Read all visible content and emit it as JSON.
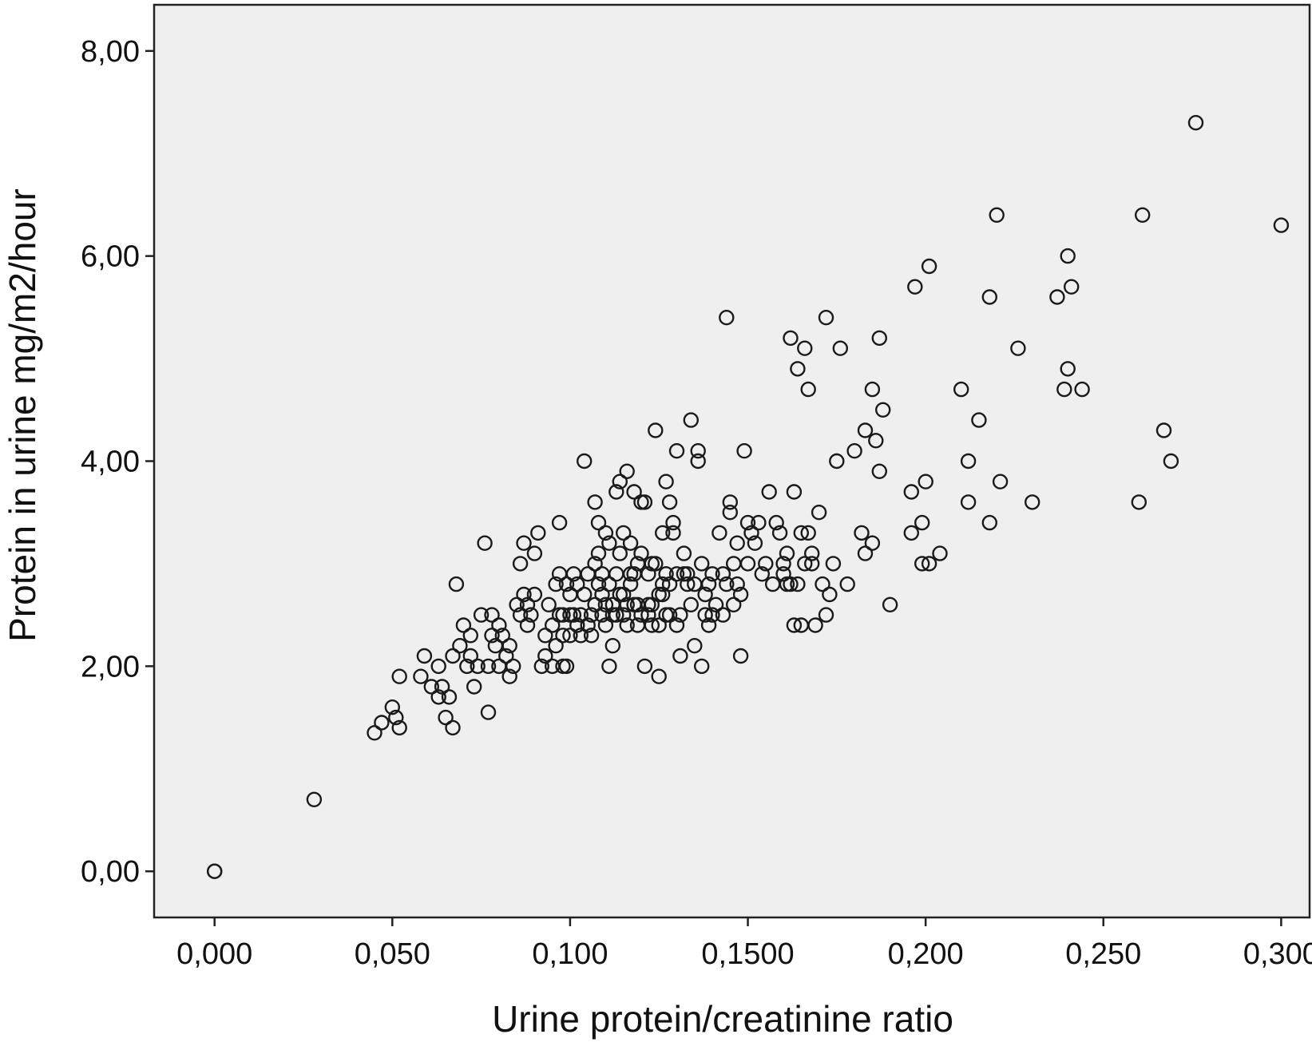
{
  "chart_data": {
    "type": "scatter",
    "title": "",
    "xlabel": "Urine protein/creatinine ratio",
    "ylabel": "Protein in urine mg/m2/hour",
    "xlim": [
      -0.017,
      0.308
    ],
    "ylim": [
      -0.45,
      8.45
    ],
    "grid": false,
    "legend": "none",
    "x_ticks": [
      {
        "value": 0.0,
        "label": "0,000"
      },
      {
        "value": 0.05,
        "label": "0,050"
      },
      {
        "value": 0.1,
        "label": "0,100"
      },
      {
        "value": 0.15,
        "label": "0,1500"
      },
      {
        "value": 0.2,
        "label": "0,200"
      },
      {
        "value": 0.25,
        "label": "0,250"
      },
      {
        "value": 0.3,
        "label": "0,300"
      }
    ],
    "y_ticks": [
      {
        "value": 0,
        "label": "0,00"
      },
      {
        "value": 2,
        "label": "2,00"
      },
      {
        "value": 4,
        "label": "4,00"
      },
      {
        "value": 6,
        "label": "6,00"
      },
      {
        "value": 8,
        "label": "8,00"
      }
    ],
    "colors": {
      "background": "#efefef",
      "marker": "#1a1a1a",
      "axis": "#222222"
    },
    "series": [
      {
        "x": [
          0,
          0,
          0.028,
          0.045,
          0.047,
          0.05,
          0.051,
          0.052,
          0.052,
          0.058,
          0.059,
          0.061,
          0.063,
          0.063,
          0.064,
          0.065,
          0.066,
          0.067,
          0.067,
          0.068,
          0.069,
          0.07,
          0.071,
          0.072,
          0.072,
          0.073,
          0.074,
          0.075,
          0.076,
          0.077,
          0.077,
          0.078,
          0.078,
          0.079,
          0.08,
          0.08,
          0.081,
          0.082,
          0.083,
          0.083,
          0.084,
          0.085,
          0.086,
          0.086,
          0.087,
          0.087,
          0.088,
          0.088,
          0.089,
          0.09,
          0.09,
          0.091,
          0.092,
          0.093,
          0.093,
          0.094,
          0.095,
          0.095,
          0.096,
          0.096,
          0.097,
          0.097,
          0.097,
          0.098,
          0.098,
          0.098,
          0.099,
          0.099,
          0.1,
          0.1,
          0.1,
          0.101,
          0.101,
          0.102,
          0.102,
          0.103,
          0.103,
          0.104,
          0.104,
          0.105,
          0.105,
          0.106,
          0.106,
          0.107,
          0.107,
          0.107,
          0.108,
          0.108,
          0.108,
          0.109,
          0.109,
          0.109,
          0.11,
          0.11,
          0.11,
          0.111,
          0.111,
          0.111,
          0.112,
          0.112,
          0.112,
          0.113,
          0.113,
          0.113,
          0.114,
          0.114,
          0.114,
          0.115,
          0.115,
          0.115,
          0.116,
          0.116,
          0.116,
          0.117,
          0.117,
          0.117,
          0.118,
          0.118,
          0.118,
          0.119,
          0.119,
          0.119,
          0.12,
          0.12,
          0.12,
          0.121,
          0.121,
          0.122,
          0.122,
          0.122,
          0.123,
          0.123,
          0.123,
          0.124,
          0.124,
          0.125,
          0.125,
          0.125,
          0.126,
          0.126,
          0.126,
          0.127,
          0.127,
          0.127,
          0.128,
          0.128,
          0.128,
          0.129,
          0.129,
          0.13,
          0.13,
          0.13,
          0.131,
          0.131,
          0.132,
          0.132,
          0.133,
          0.133,
          0.134,
          0.134,
          0.135,
          0.135,
          0.136,
          0.136,
          0.137,
          0.137,
          0.138,
          0.138,
          0.139,
          0.139,
          0.14,
          0.14,
          0.141,
          0.142,
          0.143,
          0.143,
          0.144,
          0.144,
          0.145,
          0.145,
          0.146,
          0.146,
          0.147,
          0.147,
          0.148,
          0.148,
          0.149,
          0.15,
          0.15,
          0.151,
          0.152,
          0.153,
          0.154,
          0.155,
          0.156,
          0.157,
          0.158,
          0.159,
          0.16,
          0.16,
          0.161,
          0.161,
          0.162,
          0.162,
          0.163,
          0.163,
          0.164,
          0.164,
          0.165,
          0.165,
          0.166,
          0.166,
          0.167,
          0.167,
          0.168,
          0.168,
          0.169,
          0.17,
          0.171,
          0.172,
          0.172,
          0.173,
          0.174,
          0.175,
          0.176,
          0.178,
          0.18,
          0.182,
          0.183,
          0.183,
          0.185,
          0.185,
          0.186,
          0.187,
          0.187,
          0.188,
          0.19,
          0.196,
          0.196,
          0.197,
          0.199,
          0.199,
          0.2,
          0.201,
          0.201,
          0.204,
          0.21,
          0.212,
          0.212,
          0.215,
          0.218,
          0.218,
          0.22,
          0.221,
          0.226,
          0.23,
          0.237,
          0.239,
          0.24,
          0.24,
          0.241,
          0.244,
          0.26,
          0.261,
          0.267,
          0.269,
          0.276,
          0.3
        ],
        "y": [
          0,
          0,
          0.7,
          1.35,
          1.45,
          1.6,
          1.5,
          1.4,
          1.9,
          1.9,
          2.1,
          1.8,
          1.7,
          2.0,
          1.8,
          1.5,
          1.7,
          1.4,
          2.1,
          2.8,
          2.2,
          2.4,
          2.0,
          2.1,
          2.3,
          1.8,
          2.0,
          2.5,
          3.2,
          2.0,
          1.55,
          2.3,
          2.5,
          2.2,
          2.0,
          2.4,
          2.3,
          2.1,
          1.9,
          2.2,
          2.0,
          2.6,
          2.5,
          3.0,
          3.2,
          2.7,
          2.4,
          2.6,
          2.5,
          2.7,
          3.1,
          3.3,
          2.0,
          2.3,
          2.1,
          2.6,
          2.4,
          2.0,
          2.8,
          2.2,
          2.5,
          2.9,
          3.4,
          2.0,
          2.5,
          2.3,
          2.8,
          2.0,
          2.5,
          2.3,
          2.7,
          2.9,
          2.5,
          2.4,
          2.8,
          2.5,
          2.3,
          4.0,
          2.7,
          2.9,
          2.4,
          2.5,
          2.3,
          3.6,
          3.0,
          2.6,
          3.4,
          2.8,
          3.1,
          2.5,
          2.7,
          2.9,
          3.3,
          2.6,
          2.4,
          2.8,
          3.2,
          2.0,
          2.6,
          2.2,
          2.5,
          3.7,
          2.9,
          2.5,
          3.8,
          2.7,
          3.1,
          3.3,
          2.5,
          2.7,
          2.6,
          2.4,
          3.9,
          2.9,
          2.8,
          3.2,
          3.7,
          2.6,
          2.9,
          2.4,
          3.0,
          2.6,
          3.1,
          3.6,
          2.5,
          2.0,
          3.6,
          2.6,
          2.9,
          2.5,
          3.0,
          2.6,
          2.4,
          4.3,
          3.0,
          2.7,
          1.9,
          2.4,
          2.7,
          3.3,
          2.8,
          2.5,
          3.8,
          2.9,
          3.6,
          2.5,
          2.8,
          3.4,
          3.3,
          4.1,
          2.9,
          2.4,
          2.1,
          2.5,
          2.9,
          3.1,
          2.9,
          2.8,
          4.4,
          2.6,
          2.2,
          2.8,
          4.0,
          4.1,
          3.0,
          2.0,
          2.7,
          2.5,
          2.8,
          2.4,
          2.9,
          2.5,
          2.6,
          3.3,
          2.9,
          2.5,
          5.4,
          2.8,
          3.6,
          3.5,
          3.0,
          2.6,
          3.2,
          2.8,
          2.1,
          2.7,
          4.1,
          3.4,
          3.0,
          3.3,
          3.2,
          3.4,
          2.9,
          3.0,
          3.7,
          2.8,
          3.4,
          3.3,
          3.0,
          2.9,
          3.1,
          2.8,
          5.2,
          2.8,
          2.4,
          3.7,
          4.9,
          2.8,
          2.4,
          3.3,
          3.0,
          5.1,
          4.7,
          3.3,
          3.1,
          3.0,
          2.4,
          3.5,
          2.8,
          2.5,
          5.4,
          2.7,
          3.0,
          4.0,
          5.1,
          2.8,
          4.1,
          3.3,
          4.3,
          3.1,
          4.7,
          3.2,
          4.2,
          3.9,
          5.2,
          4.5,
          2.6,
          3.7,
          3.3,
          5.7,
          3.0,
          3.4,
          3.8,
          5.9,
          3.0,
          3.1,
          4.7,
          3.6,
          4.0,
          4.4,
          3.4,
          5.6,
          6.4,
          3.8,
          5.1,
          3.6,
          5.6,
          4.7,
          6.0,
          4.9,
          5.7,
          4.7,
          3.6,
          6.4,
          4.3,
          4.0,
          7.3,
          6.3
        ]
      }
    ]
  }
}
